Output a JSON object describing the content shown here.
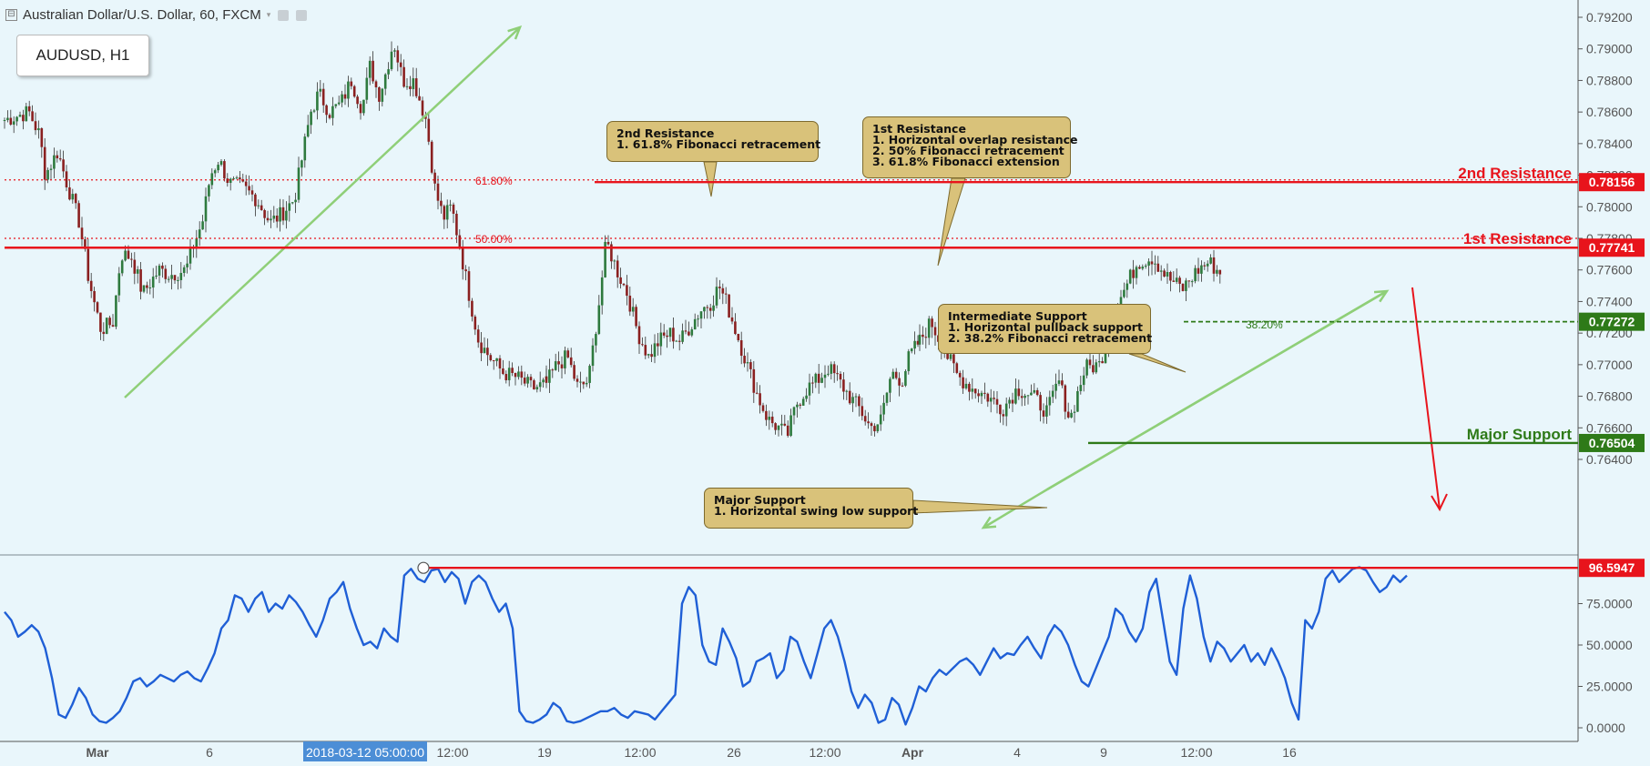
{
  "header": {
    "title": "Australian Dollar/U.S. Dollar, 60, FXCM",
    "symbol_label": "AUDUSD, H1"
  },
  "chart_data": [
    {
      "type": "candlestick",
      "title": "Australian Dollar/U.S. Dollar, 60, FXCM",
      "ylim": [
        0.763,
        0.793
      ],
      "y_ticks": [
        "0.79200",
        "0.79000",
        "0.78800",
        "0.78600",
        "0.78400",
        "0.78200",
        "0.78000",
        "0.77800",
        "0.77600",
        "0.77400",
        "0.77200",
        "0.77000",
        "0.76800",
        "0.76600",
        "0.76400"
      ],
      "x_ticks": [
        "Mar",
        "6",
        "12:00",
        "19",
        "12:00",
        "26",
        "12:00",
        "Apr",
        "4",
        "9",
        "12:00",
        "16"
      ],
      "highlighted_time": "2018-03-12 05:00:00",
      "levels": [
        {
          "name": "2nd Resistance",
          "value": "0.78156",
          "num": 0.78156,
          "color": "#e8141c"
        },
        {
          "name": "1st Resistance",
          "value": "0.77741",
          "num": 0.77741,
          "color": "#e8141c"
        },
        {
          "name": "Intermediate Support",
          "value": "0.77272",
          "num": 0.77272,
          "color": "#2e7a18"
        },
        {
          "name": "Major Support",
          "value": "0.76504",
          "num": 0.76504,
          "color": "#2e7a18"
        }
      ],
      "fib_labels": [
        {
          "text": "61.80%",
          "num": 0.7817
        },
        {
          "text": "50.00%",
          "num": 0.778
        },
        {
          "text": "38.20%",
          "num": 0.7727
        }
      ],
      "price_path": [
        [
          0,
          0.7855
        ],
        [
          0.045,
          0.786
        ],
        [
          0.065,
          0.7845
        ],
        [
          0.075,
          0.782
        ],
        [
          0.098,
          0.7835
        ],
        [
          0.115,
          0.7815
        ],
        [
          0.138,
          0.779
        ],
        [
          0.155,
          0.7755
        ],
        [
          0.165,
          0.774
        ],
        [
          0.178,
          0.7722
        ],
        [
          0.2,
          0.7727
        ],
        [
          0.215,
          0.777
        ],
        [
          0.235,
          0.7768
        ],
        [
          0.255,
          0.7745
        ],
        [
          0.285,
          0.776
        ],
        [
          0.305,
          0.7757
        ],
        [
          0.335,
          0.776
        ],
        [
          0.35,
          0.7777
        ],
        [
          0.365,
          0.779
        ],
        [
          0.38,
          0.782
        ],
        [
          0.395,
          0.783
        ],
        [
          0.415,
          0.7815
        ],
        [
          0.44,
          0.7812
        ],
        [
          0.465,
          0.7805
        ],
        [
          0.49,
          0.779
        ],
        [
          0.51,
          0.7795
        ],
        [
          0.535,
          0.7805
        ],
        [
          0.565,
          0.786
        ],
        [
          0.58,
          0.7872
        ],
        [
          0.6,
          0.786
        ],
        [
          0.62,
          0.7865
        ],
        [
          0.64,
          0.788
        ],
        [
          0.66,
          0.7862
        ],
        [
          0.675,
          0.789
        ],
        [
          0.69,
          0.787
        ],
        [
          0.7,
          0.788
        ],
        [
          0.718,
          0.7905
        ],
        [
          0.735,
          0.788
        ],
        [
          0.755,
          0.788
        ],
        [
          0.778,
          0.7855
        ],
        [
          0.795,
          0.781
        ],
        [
          0.81,
          0.7793
        ],
        [
          0.825,
          0.78
        ],
        [
          0.84,
          0.7775
        ],
        [
          0.86,
          0.774
        ],
        [
          0.875,
          0.7715
        ],
        [
          0.895,
          0.7705
        ],
        [
          0.92,
          0.7695
        ],
        [
          0.945,
          0.7692
        ],
        [
          0.975,
          0.7685
        ],
        [
          1.0,
          0.7688
        ]
      ],
      "note": "price_path uses x as fraction of visible time range; continues below",
      "price_path_b": [
        [
          0.47,
          0.7688
        ],
        [
          0.485,
          0.77
        ],
        [
          0.5,
          0.7705
        ],
        [
          0.515,
          0.7685
        ],
        [
          0.53,
          0.769
        ],
        [
          0.545,
          0.774
        ],
        [
          0.555,
          0.7778
        ],
        [
          0.57,
          0.776
        ],
        [
          0.585,
          0.7745
        ],
        [
          0.6,
          0.772
        ],
        [
          0.615,
          0.7705
        ],
        [
          0.63,
          0.7715
        ],
        [
          0.645,
          0.772
        ],
        [
          0.66,
          0.7715
        ],
        [
          0.675,
          0.7725
        ],
        [
          0.69,
          0.7735
        ],
        [
          0.705,
          0.774
        ],
        [
          0.715,
          0.775
        ],
        [
          0.725,
          0.774
        ],
        [
          0.74,
          0.772
        ],
        [
          0.755,
          0.77
        ],
        [
          0.77,
          0.768
        ],
        [
          0.785,
          0.7665
        ],
        [
          0.8,
          0.766
        ],
        [
          0.812,
          0.7655
        ],
        [
          0.825,
          0.7675
        ],
        [
          0.84,
          0.7685
        ],
        [
          0.855,
          0.769
        ],
        [
          0.87,
          0.7698
        ],
        [
          0.885,
          0.769
        ],
        [
          0.9,
          0.768
        ],
        [
          0.915,
          0.7672
        ],
        [
          0.93,
          0.766
        ],
        [
          0.945,
          0.7665
        ],
        [
          0.96,
          0.7695
        ],
        [
          0.975,
          0.769
        ],
        [
          0.985,
          0.7705
        ],
        [
          1.0,
          0.7715
        ]
      ],
      "price_path_c": [
        [
          0.0,
          0.7715
        ],
        [
          0.015,
          0.7727
        ],
        [
          0.03,
          0.7712
        ],
        [
          0.05,
          0.7693
        ],
        [
          0.07,
          0.7685
        ],
        [
          0.09,
          0.768
        ],
        [
          0.11,
          0.7672
        ],
        [
          0.13,
          0.7685
        ],
        [
          0.15,
          0.768
        ],
        [
          0.17,
          0.767
        ],
        [
          0.185,
          0.769
        ],
        [
          0.2,
          0.7665
        ],
        [
          0.22,
          0.7698
        ],
        [
          0.24,
          0.77
        ],
        [
          0.255,
          0.773
        ],
        [
          0.275,
          0.775
        ],
        [
          0.29,
          0.7765
        ],
        [
          0.31,
          0.7768
        ],
        [
          0.33,
          0.7755
        ],
        [
          0.35,
          0.7748
        ],
        [
          0.37,
          0.776
        ],
        [
          0.385,
          0.7765
        ],
        [
          0.4,
          0.7758
        ]
      ]
    },
    {
      "type": "line",
      "title": "",
      "ylim": [
        -3,
        98
      ],
      "y_ticks": [
        "75.0000",
        "50.0000",
        "25.0000",
        "0.0000"
      ],
      "y_tick_values": [
        75,
        50,
        25,
        0
      ],
      "marker_value": "96.5947",
      "marker_num": 96.5947,
      "values": [
        70,
        65,
        55,
        58,
        62,
        58,
        48,
        30,
        8,
        6,
        14,
        24,
        18,
        8,
        4,
        3,
        6,
        10,
        18,
        28,
        30,
        25,
        28,
        32,
        30,
        28,
        32,
        34,
        30,
        28,
        36,
        45,
        60,
        65,
        80,
        78,
        70,
        78,
        82,
        70,
        75,
        72,
        80,
        76,
        70,
        62,
        55,
        65,
        78,
        82,
        88,
        72,
        60,
        50,
        52,
        48,
        60,
        55,
        52,
        92,
        96,
        90,
        88,
        95,
        96,
        88,
        94,
        90,
        75,
        88,
        92,
        88,
        78,
        70,
        75,
        60,
        10,
        4,
        3,
        5,
        8,
        15,
        12,
        4,
        3,
        4,
        6,
        8,
        10,
        10,
        12,
        8,
        6,
        10,
        9,
        8,
        5,
        10,
        15,
        20,
        75,
        85,
        80,
        50,
        40,
        38,
        60,
        52,
        42,
        25,
        28,
        40,
        42,
        45,
        30,
        35,
        55,
        52,
        40,
        30,
        45,
        60,
        65,
        55,
        40,
        22,
        12,
        20,
        15,
        3,
        5,
        18,
        14,
        2,
        12,
        25,
        22,
        30,
        35,
        32,
        36,
        40,
        42,
        38,
        32,
        40,
        48,
        42,
        45,
        44,
        50,
        55,
        48,
        42,
        55,
        62,
        58,
        50,
        38,
        28,
        25,
        35,
        45,
        55,
        72,
        68,
        58,
        52,
        60,
        82,
        90,
        65,
        40,
        32,
        72,
        92,
        78,
        55,
        40,
        52,
        48,
        40,
        45,
        50,
        40,
        45,
        38,
        48,
        40,
        30,
        15,
        5,
        65,
        60,
        70,
        90,
        95,
        88,
        92,
        96,
        97,
        95,
        88,
        82,
        85,
        92,
        88,
        92
      ]
    }
  ],
  "annotations": {
    "second_resistance": {
      "heading": "2nd Resistance",
      "lines": [
        "1. 61.8% Fibonacci retracement"
      ]
    },
    "first_resistance": {
      "heading": "1st Resistance",
      "lines": [
        "1. Horizontal overlap resistance",
        "2. 50% Fibonacci retracement",
        "3. 61.8% Fibonacci extension"
      ]
    },
    "intermediate_support": {
      "heading": "Intermediate Support",
      "lines": [
        "1. Horizontal pullback support",
        "2. 38.2% Fibonacci retracement"
      ]
    },
    "major_support": {
      "heading": "Major Support",
      "lines": [
        "1. Horizontal swing low support"
      ]
    }
  },
  "colors": {
    "background": "#e9f6fb",
    "resistance": "#e8141c",
    "support": "#2e7a18",
    "oscillator": "#1f5fd6",
    "arrow_green": "#8fcf78",
    "candle_up": "#2e7a3e",
    "candle_down": "#8a2020",
    "callout_fill": "#d9c27a"
  }
}
